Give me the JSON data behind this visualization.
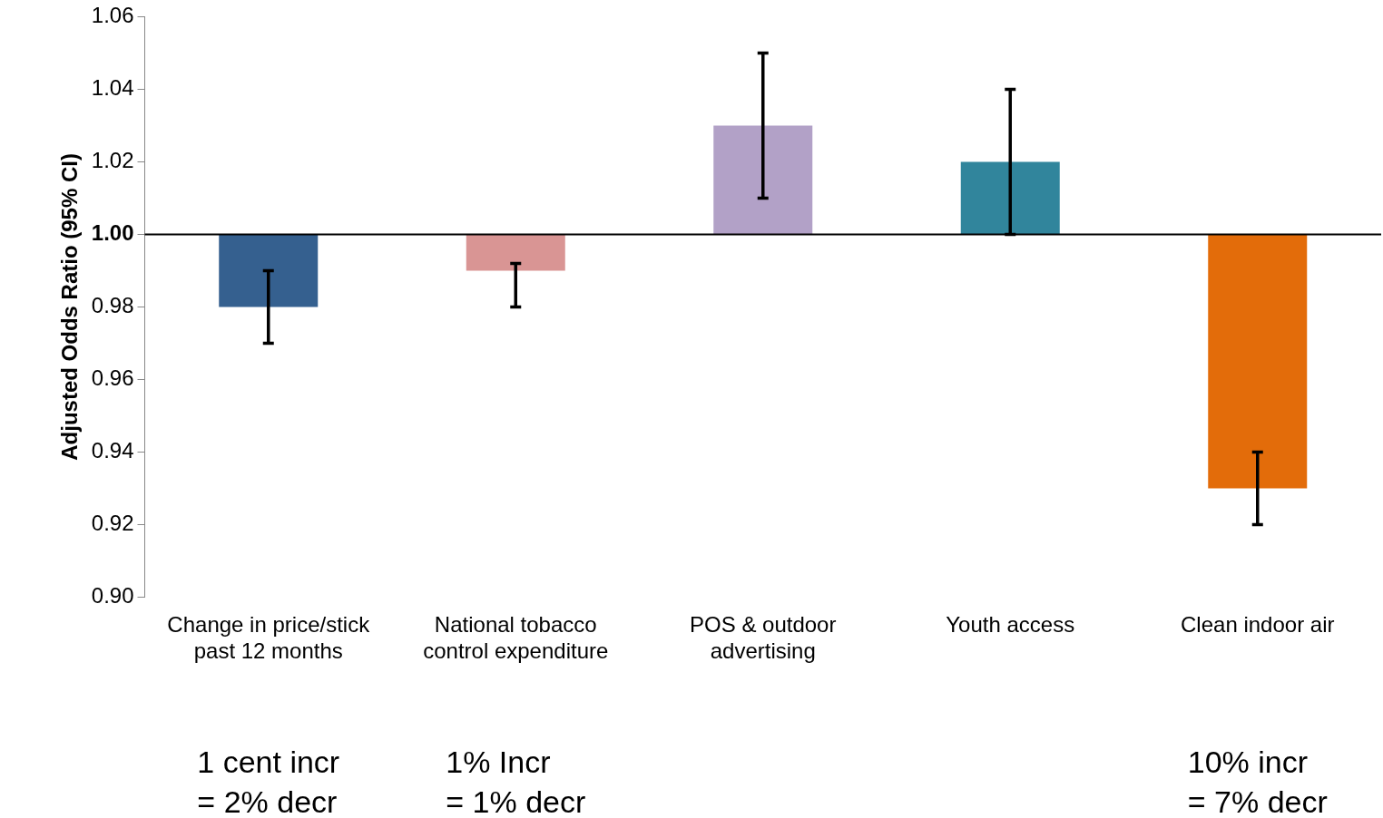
{
  "chart_data": {
    "type": "bar",
    "ylabel": "Adjusted Odds Ratio (95% CI)",
    "categories": [
      "Change in price/stick\npast 12 months",
      "National tobacco\ncontrol expenditure",
      "POS & outdoor\nadvertising",
      "Youth access",
      "Clean indoor air"
    ],
    "base": [
      1,
      1,
      1,
      1,
      1
    ],
    "values": [
      -0.02,
      -0.01,
      0.03,
      0.02,
      -0.07
    ],
    "colors": [
      "#35608f",
      "#d99594",
      "#b2a1c7",
      "#31859c",
      "#e36c0a"
    ],
    "errors": [
      [
        0.97,
        0.99
      ],
      [
        0.98,
        0.992
      ],
      [
        1.01,
        1.05
      ],
      [
        1.0,
        1.04
      ],
      [
        0.92,
        0.94
      ]
    ],
    "ylim": [
      0.9,
      1.06
    ],
    "yticks": [
      {
        "value": 0.9,
        "label": "0.90"
      },
      {
        "value": 0.92,
        "label": "0.92"
      },
      {
        "value": 0.94,
        "label": "0.94"
      },
      {
        "value": 0.96,
        "label": "0.96"
      },
      {
        "value": 0.98,
        "label": "0.98"
      },
      {
        "value": 1.0,
        "label": "1.00"
      },
      {
        "value": 1.02,
        "label": "1.02"
      },
      {
        "value": 1.04,
        "label": "1.04"
      },
      {
        "value": 1.06,
        "label": "1.06"
      }
    ],
    "ref_lines": [
      {
        "axis": "y",
        "value": 1.0,
        "color": "#000000"
      }
    ],
    "annotations": [
      "1 cent incr\n= 2% decr",
      "1% Incr\n= 1% decr",
      "10% incr\n= 7% decr"
    ],
    "grid": false,
    "legend": false
  }
}
